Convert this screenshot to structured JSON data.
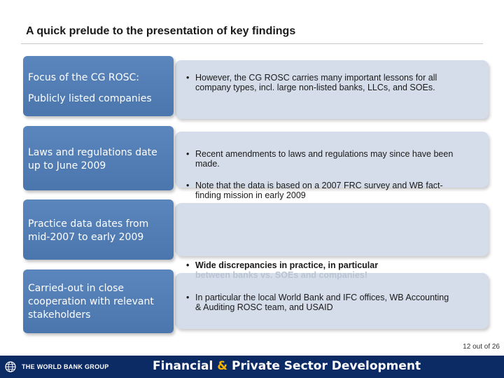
{
  "slide": {
    "title": "A quick prelude to the presentation of key findings",
    "page_number": "12 out of 26"
  },
  "rows": [
    {
      "label_line1": "Focus of the CG ROSC:",
      "label_line2": "Publicly listed companies"
    },
    {
      "label": "Laws and regulations date up to June 2009"
    },
    {
      "label": "Practice data dates from mid-2007 to early 2009"
    },
    {
      "label": "Carried-out in close cooperation with relevant stakeholders"
    }
  ],
  "bullets": [
    {
      "marker": "•",
      "text": "However, the CG ROSC carries many important lessons for all company types, incl. large non-listed banks, LLCs, and SOEs."
    },
    {
      "marker": "•",
      "text": "Recent amendments to laws and regulations may since have been made."
    },
    {
      "marker": "•",
      "text": "Note that the data is based on a 2007 FRC survey and WB fact-finding mission in early 2009"
    },
    {
      "marker": "•",
      "text": "Wide discrepancies in practice, in particular",
      "text_faded": "between banks vs. SOEs and companies!"
    },
    {
      "marker": "•",
      "text": "In particular the local World Bank and IFC offices, WB Accounting & Auditing ROSC team, and USAID"
    }
  ],
  "footer": {
    "org_name": "THE WORLD BANK GROUP",
    "brand_part1": "Financial",
    "brand_amp": "&",
    "brand_part2": "Private Sector Development",
    "logo_icon": "globe-icon",
    "colors": {
      "bar": "#0c2a63",
      "accent": "#f4b400"
    }
  },
  "colors": {
    "label_box": "#5b86bd",
    "content_box": "#d4dde9"
  }
}
